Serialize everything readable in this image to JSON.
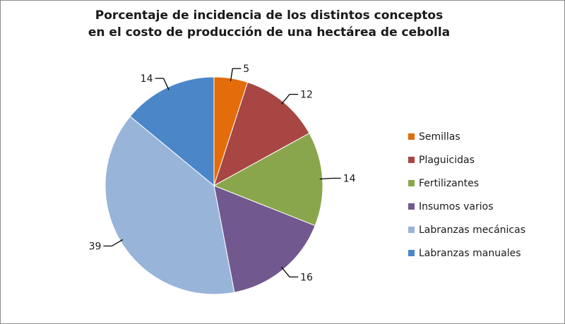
{
  "chart_data": {
    "type": "pie",
    "title": "Porcentaje de incidencia de los distintos conceptos",
    "subtitle": "en el costo de producción de una hectárea de cebolla",
    "slices": [
      {
        "label": "Semillas",
        "value": 5,
        "color": "#e46c0a"
      },
      {
        "label": "Plaguicidas",
        "value": 12,
        "color": "#a84644"
      },
      {
        "label": "Fertilizantes",
        "value": 14,
        "color": "#8aa64c"
      },
      {
        "label": "Insumos varios",
        "value": 16,
        "color": "#71588f"
      },
      {
        "label": "Labranzas mecánicas",
        "value": 39,
        "color": "#98b4d9"
      },
      {
        "label": "Labranzas manuales",
        "value": 14,
        "color": "#4a86c8"
      }
    ],
    "legend_position": "right"
  }
}
